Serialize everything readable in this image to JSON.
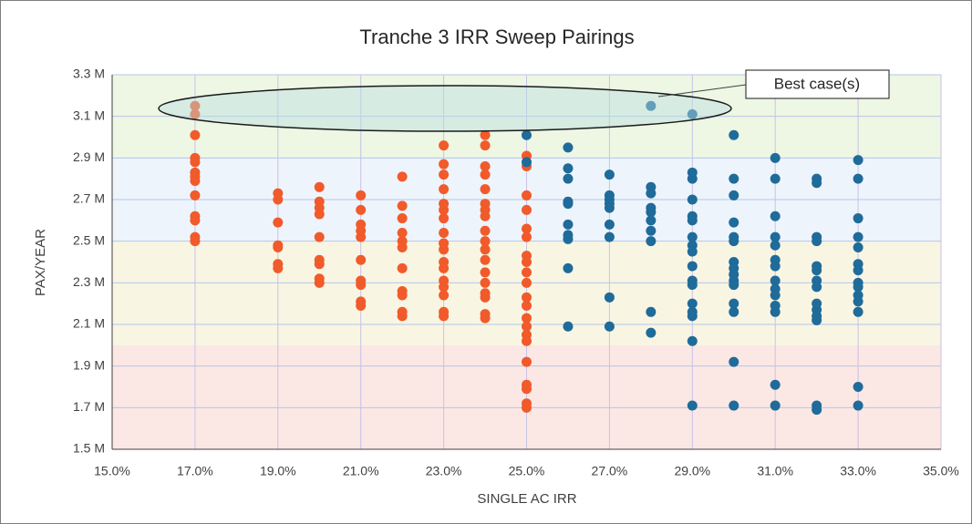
{
  "chart_data": {
    "type": "scatter",
    "title": "Tranche 3 IRR Sweep Pairings",
    "x_label": "SINGLE AC IRR",
    "y_label": "PAX/YEAR",
    "annotation": "Best case(s)",
    "xlim": [
      15,
      35
    ],
    "xticks": [
      {
        "value": 15,
        "label": "15.0%"
      },
      {
        "value": 17,
        "label": "17.0%"
      },
      {
        "value": 19,
        "label": "19.0%"
      },
      {
        "value": 21,
        "label": "21.0%"
      },
      {
        "value": 23,
        "label": "23.0%"
      },
      {
        "value": 25,
        "label": "25.0%"
      },
      {
        "value": 27,
        "label": "27.0%"
      },
      {
        "value": 29,
        "label": "29.0%"
      },
      {
        "value": 31,
        "label": "31.0%"
      },
      {
        "value": 33,
        "label": "33.0%"
      },
      {
        "value": 35,
        "label": "35.0%"
      }
    ],
    "ylim": [
      1.5,
      3.3
    ],
    "yticks": [
      {
        "value": 1.5,
        "label": "1.5 M"
      },
      {
        "value": 1.7,
        "label": "1.7 M"
      },
      {
        "value": 1.9,
        "label": "1.9 M"
      },
      {
        "value": 2.1,
        "label": "2.1 M"
      },
      {
        "value": 2.3,
        "label": "2.3 M"
      },
      {
        "value": 2.5,
        "label": "2.5 M"
      },
      {
        "value": 2.7,
        "label": "2.7 M"
      },
      {
        "value": 2.9,
        "label": "2.9 M"
      },
      {
        "value": 3.1,
        "label": "3.1 M"
      },
      {
        "value": 3.3,
        "label": "3.3 M"
      }
    ],
    "grid": true,
    "bands": [
      {
        "from": 2.9,
        "to": 3.3,
        "color": "#eef6e4"
      },
      {
        "from": 2.5,
        "to": 2.9,
        "color": "#eef4fb"
      },
      {
        "from": 2.0,
        "to": 2.5,
        "color": "#f9f5e3"
      },
      {
        "from": 1.5,
        "to": 2.0,
        "color": "#fbe7e4"
      }
    ],
    "series": [
      {
        "color": "#f15a2a",
        "x": [
          17,
          17,
          17,
          17,
          17,
          17,
          17,
          17,
          17,
          17,
          17,
          17,
          17,
          19,
          19,
          19,
          19,
          19,
          19,
          19,
          20,
          20,
          20,
          20,
          20,
          20,
          20,
          20,
          20,
          21,
          21,
          21,
          21,
          21,
          21,
          21,
          21,
          21,
          21,
          22,
          22,
          22,
          22,
          22,
          22,
          22,
          22,
          22,
          22,
          22,
          23,
          23,
          23,
          23,
          23,
          23,
          23,
          23,
          23,
          23,
          23,
          23,
          23,
          23,
          23,
          23,
          23,
          24,
          24,
          24,
          24,
          24,
          24,
          24,
          24,
          24,
          24,
          24,
          24,
          24,
          24,
          24,
          24,
          24,
          24,
          25,
          25,
          25,
          25,
          25,
          25,
          25,
          25,
          25,
          25,
          25,
          25,
          25,
          25,
          25,
          25,
          25,
          25,
          25,
          25,
          25
        ],
        "values": [
          3.15,
          3.11,
          3.01,
          2.9,
          2.88,
          2.83,
          2.81,
          2.79,
          2.72,
          2.62,
          2.6,
          2.52,
          2.5,
          2.73,
          2.7,
          2.59,
          2.48,
          2.47,
          2.39,
          2.37,
          2.76,
          2.69,
          2.66,
          2.63,
          2.52,
          2.41,
          2.39,
          2.32,
          2.3,
          2.72,
          2.65,
          2.58,
          2.55,
          2.52,
          2.41,
          2.31,
          2.29,
          2.21,
          2.19,
          2.81,
          2.67,
          2.61,
          2.54,
          2.5,
          2.47,
          2.37,
          2.26,
          2.24,
          2.16,
          2.14,
          2.96,
          2.87,
          2.82,
          2.75,
          2.68,
          2.65,
          2.61,
          2.54,
          2.49,
          2.46,
          2.4,
          2.37,
          2.31,
          2.28,
          2.24,
          2.16,
          2.14,
          3.01,
          2.96,
          2.86,
          2.82,
          2.75,
          2.68,
          2.65,
          2.62,
          2.55,
          2.5,
          2.46,
          2.41,
          2.35,
          2.3,
          2.25,
          2.23,
          2.15,
          2.13,
          2.91,
          2.86,
          2.72,
          2.65,
          2.56,
          2.52,
          2.43,
          2.4,
          2.35,
          2.3,
          2.23,
          2.19,
          2.13,
          2.09,
          2.05,
          2.02,
          1.92,
          1.81,
          1.79,
          1.72,
          1.7
        ]
      },
      {
        "color": "#1f6b9a",
        "x": [
          25,
          25,
          26,
          26,
          26,
          26,
          26,
          26,
          26,
          26,
          26,
          26,
          27,
          27,
          27,
          27,
          27,
          27,
          27,
          27,
          27,
          28,
          28,
          28,
          28,
          28,
          28,
          28,
          28,
          28,
          28,
          29,
          29,
          29,
          29,
          29,
          29,
          29,
          29,
          29,
          29,
          29,
          29,
          29,
          29,
          29,
          29,
          29,
          30,
          30,
          30,
          30,
          30,
          30,
          30,
          30,
          30,
          30,
          30,
          30,
          30,
          30,
          30,
          31,
          31,
          31,
          31,
          31,
          31,
          31,
          31,
          31,
          31,
          31,
          31,
          31,
          31,
          32,
          32,
          32,
          32,
          32,
          32,
          32,
          32,
          32,
          32,
          32,
          32,
          32,
          32,
          33,
          33,
          33,
          33,
          33,
          33,
          33,
          33,
          33,
          33,
          33,
          33,
          33,
          33
        ],
        "values": [
          3.01,
          2.88,
          2.95,
          2.85,
          2.8,
          2.69,
          2.68,
          2.58,
          2.53,
          2.51,
          2.37,
          2.09,
          2.82,
          2.72,
          2.7,
          2.68,
          2.66,
          2.58,
          2.52,
          2.23,
          2.09,
          3.15,
          2.76,
          2.73,
          2.66,
          2.64,
          2.6,
          2.55,
          2.5,
          2.16,
          2.06,
          3.11,
          2.83,
          2.8,
          2.7,
          2.62,
          2.6,
          2.52,
          2.48,
          2.45,
          2.38,
          2.31,
          2.29,
          2.2,
          2.16,
          2.14,
          2.02,
          1.71,
          3.01,
          2.8,
          2.72,
          2.59,
          2.52,
          2.5,
          2.4,
          2.37,
          2.34,
          2.31,
          2.29,
          2.2,
          2.16,
          1.92,
          1.71,
          2.9,
          2.8,
          2.62,
          2.52,
          2.48,
          2.41,
          2.38,
          2.31,
          2.27,
          2.24,
          2.19,
          2.16,
          1.81,
          1.71,
          2.8,
          2.78,
          2.52,
          2.5,
          2.38,
          2.36,
          2.31,
          2.28,
          2.2,
          2.17,
          2.14,
          2.12,
          1.71,
          1.69,
          2.89,
          2.8,
          2.61,
          2.52,
          2.47,
          2.39,
          2.36,
          2.3,
          2.28,
          2.24,
          2.21,
          2.16,
          1.8,
          1.71
        ]
      }
    ]
  }
}
